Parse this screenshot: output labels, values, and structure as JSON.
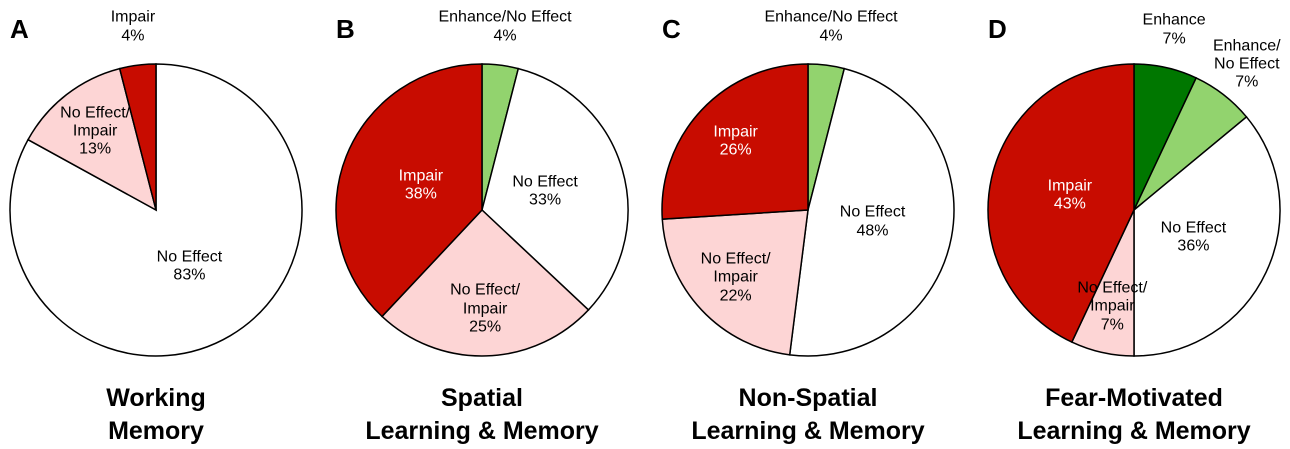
{
  "chart_data": [
    {
      "type": "pie",
      "panel": "A",
      "title": "Working\nMemory",
      "categories": [
        "No Effect",
        "No Effect/\nImpair",
        "Impair"
      ],
      "values": [
        83,
        13,
        4
      ],
      "value_labels": [
        "83%",
        "13%",
        "4%"
      ],
      "colors": [
        "#ffffff",
        "#fdd5d5",
        "#c80c00"
      ]
    },
    {
      "type": "pie",
      "panel": "B",
      "title": "Spatial\nLearning & Memory",
      "categories": [
        "Enhance/No Effect",
        "No Effect",
        "No Effect/\nImpair",
        "Impair"
      ],
      "values": [
        4,
        33,
        25,
        38
      ],
      "value_labels": [
        "4%",
        "33%",
        "25%",
        "38%"
      ],
      "colors": [
        "#92d36e",
        "#ffffff",
        "#fdd5d5",
        "#c80c00"
      ]
    },
    {
      "type": "pie",
      "panel": "C",
      "title": "Non-Spatial\nLearning & Memory",
      "categories": [
        "Enhance/No Effect",
        "No Effect",
        "No Effect/\nImpair",
        "Impair"
      ],
      "values": [
        4,
        48,
        22,
        26
      ],
      "value_labels": [
        "4%",
        "48%",
        "22%",
        "26%"
      ],
      "colors": [
        "#92d36e",
        "#ffffff",
        "#fdd5d5",
        "#c80c00"
      ]
    },
    {
      "type": "pie",
      "panel": "D",
      "title": "Fear-Motivated\nLearning & Memory",
      "categories": [
        "Enhance",
        "Enhance/\nNo Effect",
        "No Effect",
        "No Effect/\nImpair",
        "Impair"
      ],
      "values": [
        7,
        7,
        36,
        7,
        43
      ],
      "value_labels": [
        "7%",
        "7%",
        "36%",
        "7%",
        "43%"
      ],
      "colors": [
        "#007700",
        "#92d36e",
        "#ffffff",
        "#fdd5d5",
        "#c80c00"
      ]
    }
  ]
}
